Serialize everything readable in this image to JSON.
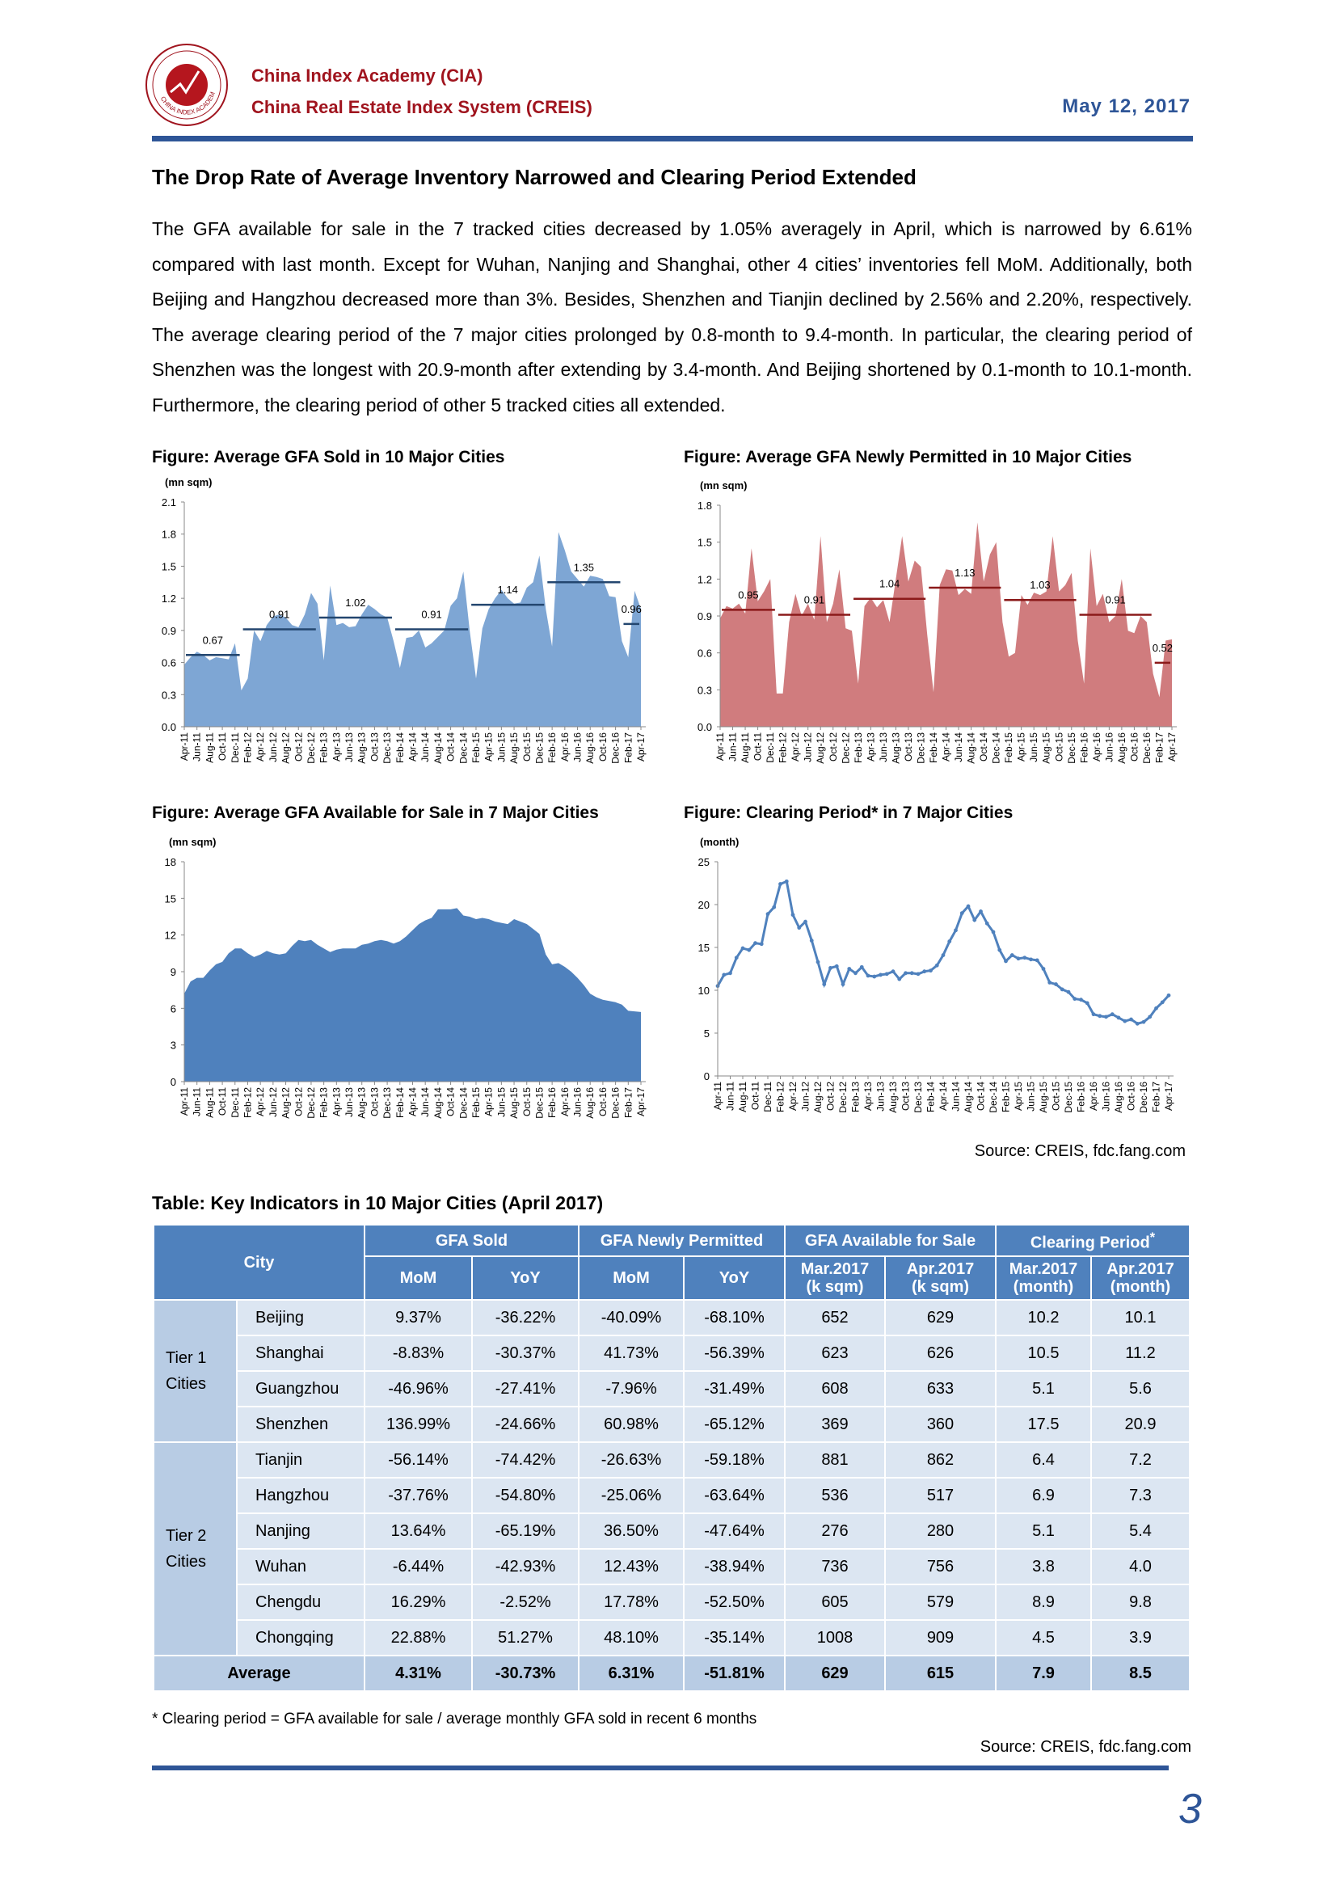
{
  "header": {
    "org_line1": "China Index Academy (CIA)",
    "org_line2": "China Real Estate Index System (CREIS)",
    "date": "May 12, 2017",
    "logo_text": "CHINA INDEX ACADEMY"
  },
  "section": {
    "heading": "The Drop Rate of Average Inventory Narrowed and Clearing Period Extended",
    "paragraph": "The GFA available for sale in the 7 tracked cities decreased by 1.05% averagely in April, which is narrowed by 6.61% compared with last month. Except for Wuhan, Nanjing and Shanghai, other 4 cities’ inventories fell MoM. Additionally, both Beijing and Hangzhou decreased more than 3%. Besides, Shenzhen and Tianjin declined by 2.56% and 2.20%, respectively. The average clearing period of the 7 major cities prolonged by 0.8-month to 9.4-month. In particular, the clearing period of Shenzhen was the longest with 20.9-month after extending by 3.4-month. And Beijing shortened by 0.1-month to 10.1-month. Furthermore, the clearing period of other 5 tracked cities all extended."
  },
  "figures": {
    "source": "Source: CREIS, fdc.fang.com"
  },
  "chart_data": [
    {
      "type": "area",
      "title": "Figure: Average GFA Sold in 10 Major Cities",
      "ylabel": "(mn sqm)",
      "ylim": [
        0,
        2.1
      ],
      "yticks": [
        "0.0",
        "0.3",
        "0.6",
        "0.9",
        "1.2",
        "1.5",
        "1.8",
        "2.1"
      ],
      "color": "#7ea6d4",
      "avg_color": "#23466f",
      "x_tick_labels": [
        "Apr-11",
        "Jun-11",
        "Aug-11",
        "Oct-11",
        "Dec-11",
        "Feb-12",
        "Apr-12",
        "Jun-12",
        "Aug-12",
        "Oct-12",
        "Dec-12",
        "Feb-13",
        "Apr-13",
        "Jun-13",
        "Aug-13",
        "Oct-13",
        "Dec-13",
        "Feb-14",
        "Apr-14",
        "Jun-14",
        "Aug-14",
        "Oct-14",
        "Dec-14",
        "Feb-15",
        "Apr-15",
        "Jun-15",
        "Aug-15",
        "Oct-15",
        "Dec-15",
        "Feb-16",
        "Apr-16",
        "Jun-16",
        "Aug-16",
        "Oct-16",
        "Dec-16",
        "Feb-17",
        "Apr-17"
      ],
      "values": [
        0.58,
        0.65,
        0.7,
        0.67,
        0.62,
        0.65,
        0.64,
        0.63,
        0.78,
        0.34,
        0.45,
        0.9,
        0.8,
        0.95,
        1.03,
        1.05,
        1.02,
        0.95,
        0.93,
        1.05,
        1.25,
        1.15,
        0.62,
        1.32,
        0.95,
        0.97,
        0.93,
        0.94,
        1.05,
        1.14,
        1.1,
        1.05,
        1.02,
        0.8,
        0.55,
        0.83,
        0.84,
        0.9,
        0.74,
        0.78,
        0.84,
        0.9,
        1.13,
        1.2,
        1.45,
        0.9,
        0.45,
        0.92,
        1.1,
        1.2,
        1.28,
        1.2,
        1.15,
        1.16,
        1.3,
        1.35,
        1.6,
        1.1,
        0.75,
        1.82,
        1.65,
        1.45,
        1.38,
        1.31,
        1.41,
        1.4,
        1.38,
        1.22,
        1.21,
        0.8,
        0.65,
        1.27,
        1.1
      ],
      "annual_averages": [
        {
          "period": "2011",
          "value": 0.67,
          "label": "0.67",
          "from": 0,
          "to": 9
        },
        {
          "period": "2012",
          "value": 0.91,
          "label": "0.91",
          "from": 9,
          "to": 21
        },
        {
          "period": "2013",
          "value": 1.02,
          "label": "1.02",
          "from": 21,
          "to": 33
        },
        {
          "period": "2014",
          "value": 0.91,
          "label": "0.91",
          "from": 33,
          "to": 45
        },
        {
          "period": "2015",
          "value": 1.14,
          "label": "1.14",
          "from": 45,
          "to": 57
        },
        {
          "period": "2016",
          "value": 1.35,
          "label": "1.35",
          "from": 57,
          "to": 69
        },
        {
          "period": "2017",
          "value": 0.96,
          "label": "0.96",
          "from": 69,
          "to": 72
        }
      ]
    },
    {
      "type": "area",
      "title": "Figure: Average GFA Newly Permitted in 10 Major Cities",
      "ylabel": "(mn sqm)",
      "ylim": [
        0,
        1.8
      ],
      "yticks": [
        "0.0",
        "0.3",
        "0.6",
        "0.9",
        "1.2",
        "1.5",
        "1.8"
      ],
      "color": "#d07c7e",
      "avg_color": "#8b1a1a",
      "x_tick_labels": [
        "Apr-11",
        "Jun-11",
        "Aug-11",
        "Oct-11",
        "Dec-11",
        "Feb-12",
        "Apr-12",
        "Jun-12",
        "Aug-12",
        "Oct-12",
        "Dec-12",
        "Feb-13",
        "Apr-13",
        "Jun-13",
        "Aug-13",
        "Oct-13",
        "Dec-13",
        "Feb-14",
        "Apr-14",
        "Jun-14",
        "Aug-14",
        "Oct-14",
        "Dec-14",
        "Feb-15",
        "Apr-15",
        "Jun-15",
        "Aug-15",
        "Oct-15",
        "Dec-15",
        "Feb-16",
        "Apr-16",
        "Jun-16",
        "Aug-16",
        "Oct-16",
        "Dec-16",
        "Feb-17",
        "Apr-17"
      ],
      "values": [
        0.88,
        0.98,
        0.96,
        1.0,
        0.92,
        1.45,
        1.02,
        1.1,
        1.2,
        0.27,
        0.27,
        0.85,
        1.08,
        0.9,
        1.0,
        0.87,
        1.55,
        0.85,
        1.0,
        1.28,
        0.8,
        0.78,
        0.35,
        0.98,
        1.05,
        0.97,
        1.03,
        0.85,
        1.2,
        1.55,
        1.18,
        1.35,
        1.3,
        0.75,
        0.28,
        1.15,
        1.28,
        1.27,
        1.07,
        1.12,
        1.08,
        1.66,
        1.18,
        1.4,
        1.5,
        0.85,
        0.57,
        0.6,
        1.07,
        0.99,
        1.09,
        1.07,
        1.1,
        1.55,
        1.1,
        1.15,
        1.25,
        0.7,
        0.35,
        1.45,
        0.98,
        1.08,
        0.85,
        0.9,
        1.2,
        0.78,
        0.76,
        0.9,
        0.85,
        0.43,
        0.24,
        0.7,
        0.71
      ],
      "annual_averages": [
        {
          "period": "2011",
          "value": 0.95,
          "label": "0.95",
          "from": 0,
          "to": 9
        },
        {
          "period": "2012",
          "value": 0.91,
          "label": "0.91",
          "from": 9,
          "to": 21
        },
        {
          "period": "2013",
          "value": 1.04,
          "label": "1.04",
          "from": 21,
          "to": 33
        },
        {
          "period": "2014",
          "value": 1.13,
          "label": "1.13",
          "from": 33,
          "to": 45
        },
        {
          "period": "2015",
          "value": 1.03,
          "label": "1.03",
          "from": 45,
          "to": 57
        },
        {
          "period": "2016",
          "value": 0.91,
          "label": "0.91",
          "from": 57,
          "to": 69
        },
        {
          "period": "2017",
          "value": 0.52,
          "label": "0.52",
          "from": 69,
          "to": 72
        }
      ]
    },
    {
      "type": "area",
      "title": "Figure: Average GFA Available for Sale in 7 Major Cities",
      "ylabel": "(mn sqm)",
      "ylim": [
        0,
        18
      ],
      "yticks": [
        "0",
        "3",
        "6",
        "9",
        "12",
        "15",
        "18"
      ],
      "color": "#4f81bd",
      "x_tick_labels": [
        "Apr-11",
        "Jun-11",
        "Aug-11",
        "Oct-11",
        "Dec-11",
        "Feb-12",
        "Apr-12",
        "Jun-12",
        "Aug-12",
        "Oct-12",
        "Dec-12",
        "Feb-13",
        "Apr-13",
        "Jun-13",
        "Aug-13",
        "Oct-13",
        "Dec-13",
        "Feb-14",
        "Apr-14",
        "Jun-14",
        "Aug-14",
        "Oct-14",
        "Dec-14",
        "Feb-15",
        "Apr-15",
        "Jun-15",
        "Aug-15",
        "Oct-15",
        "Dec-15",
        "Feb-16",
        "Apr-16",
        "Jun-16",
        "Aug-16",
        "Oct-16",
        "Dec-16",
        "Feb-17",
        "Apr-17"
      ],
      "values": [
        7.2,
        8.2,
        8.5,
        8.5,
        9.1,
        9.6,
        9.8,
        10.5,
        10.9,
        10.9,
        10.5,
        10.2,
        10.4,
        10.7,
        10.5,
        10.4,
        10.5,
        11.1,
        11.6,
        11.5,
        11.6,
        11.2,
        10.9,
        10.6,
        10.8,
        10.9,
        10.9,
        10.9,
        11.2,
        11.3,
        11.5,
        11.6,
        11.5,
        11.3,
        11.5,
        11.9,
        12.4,
        12.9,
        13.2,
        13.4,
        14.1,
        14.1,
        14.1,
        14.2,
        13.6,
        13.5,
        13.3,
        13.4,
        13.3,
        13.1,
        13.0,
        12.9,
        13.3,
        13.1,
        12.9,
        12.5,
        12.1,
        10.4,
        9.6,
        9.7,
        9.4,
        9.0,
        8.5,
        7.9,
        7.2,
        6.9,
        6.7,
        6.6,
        6.5,
        6.3,
        5.8,
        5.75,
        5.7
      ]
    },
    {
      "type": "line",
      "title": "Figure: Clearing Period* in 7 Major Cities",
      "ylabel": "(month)",
      "ylim": [
        0,
        25
      ],
      "yticks": [
        "0",
        "5",
        "10",
        "15",
        "20",
        "25"
      ],
      "color": "#4f81bd",
      "x_tick_labels": [
        "Apr-11",
        "Jun-11",
        "Aug-11",
        "Oct-11",
        "Dec-11",
        "Feb-12",
        "Apr-12",
        "Jun-12",
        "Aug-12",
        "Oct-12",
        "Dec-12",
        "Feb-13",
        "Apr-13",
        "Jun-13",
        "Aug-13",
        "Oct-13",
        "Dec-13",
        "Feb-14",
        "Apr-14",
        "Jun-14",
        "Aug-14",
        "Oct-14",
        "Dec-14",
        "Feb-15",
        "Apr-15",
        "Jun-15",
        "Aug-15",
        "Oct-15",
        "Dec-15",
        "Feb-16",
        "Apr-16",
        "Jun-16",
        "Aug-16",
        "Oct-16",
        "Dec-16",
        "Feb-17",
        "Apr-17"
      ],
      "values": [
        10.5,
        11.8,
        12.0,
        13.8,
        14.9,
        14.7,
        15.5,
        15.4,
        18.9,
        19.7,
        22.4,
        22.7,
        18.8,
        17.3,
        18.0,
        15.8,
        13.3,
        10.7,
        12.6,
        12.8,
        10.7,
        12.5,
        12.0,
        12.7,
        11.7,
        11.6,
        11.8,
        11.9,
        12.2,
        11.3,
        12.0,
        12.0,
        11.9,
        12.2,
        12.3,
        12.9,
        14.1,
        15.7,
        17.0,
        19.0,
        19.8,
        18.2,
        19.2,
        17.8,
        16.8,
        14.7,
        13.4,
        14.1,
        13.7,
        13.8,
        13.6,
        13.5,
        12.5,
        10.9,
        10.7,
        10.1,
        9.8,
        9.0,
        8.9,
        8.5,
        7.2,
        7.0,
        6.9,
        7.2,
        6.8,
        6.4,
        6.6,
        6.1,
        6.3,
        6.9,
        7.9,
        8.6,
        9.4
      ]
    }
  ],
  "table": {
    "title": "Table: Key Indicators in 10 Major Cities (April 2017)",
    "headers": {
      "city": "City",
      "gfa_sold": "GFA Sold",
      "gfa_permitted": "GFA Newly Permitted",
      "gfa_available": "GFA Available for Sale",
      "clearing": "Clearing Period",
      "clearing_mark": "*",
      "mom": "MoM",
      "yoy": "YoY",
      "mar_2017": "Mar.2017",
      "apr_2017": "Apr.2017",
      "ksqm": "(k sqm)",
      "month": "(month)"
    },
    "groups": [
      {
        "tier": "Tier 1 Cities",
        "rows": [
          [
            "Beijing",
            "9.37%",
            "-36.22%",
            "-40.09%",
            "-68.10%",
            "652",
            "629",
            "10.2",
            "10.1"
          ],
          [
            "Shanghai",
            "-8.83%",
            "-30.37%",
            "41.73%",
            "-56.39%",
            "623",
            "626",
            "10.5",
            "11.2"
          ],
          [
            "Guangzhou",
            "-46.96%",
            "-27.41%",
            "-7.96%",
            "-31.49%",
            "608",
            "633",
            "5.1",
            "5.6"
          ],
          [
            "Shenzhen",
            "136.99%",
            "-24.66%",
            "60.98%",
            "-65.12%",
            "369",
            "360",
            "17.5",
            "20.9"
          ]
        ]
      },
      {
        "tier": "Tier 2 Cities",
        "rows": [
          [
            "Tianjin",
            "-56.14%",
            "-74.42%",
            "-26.63%",
            "-59.18%",
            "881",
            "862",
            "6.4",
            "7.2"
          ],
          [
            "Hangzhou",
            "-37.76%",
            "-54.80%",
            "-25.06%",
            "-63.64%",
            "536",
            "517",
            "6.9",
            "7.3"
          ],
          [
            "Nanjing",
            "13.64%",
            "-65.19%",
            "36.50%",
            "-47.64%",
            "276",
            "280",
            "5.1",
            "5.4"
          ],
          [
            "Wuhan",
            "-6.44%",
            "-42.93%",
            "12.43%",
            "-38.94%",
            "736",
            "756",
            "3.8",
            "4.0"
          ],
          [
            "Chengdu",
            "16.29%",
            "-2.52%",
            "17.78%",
            "-52.50%",
            "605",
            "579",
            "8.9",
            "9.8"
          ],
          [
            "Chongqing",
            "22.88%",
            "51.27%",
            "48.10%",
            "-35.14%",
            "1008",
            "909",
            "4.5",
            "3.9"
          ]
        ]
      }
    ],
    "average": [
      "Average",
      "4.31%",
      "-30.73%",
      "6.31%",
      "-51.81%",
      "629",
      "615",
      "7.9",
      "8.5"
    ],
    "footnote": "* Clearing period = GFA available for sale / average monthly GFA sold in recent 6 months",
    "source": "Source: CREIS, fdc.fang.com"
  },
  "page_number": "3"
}
